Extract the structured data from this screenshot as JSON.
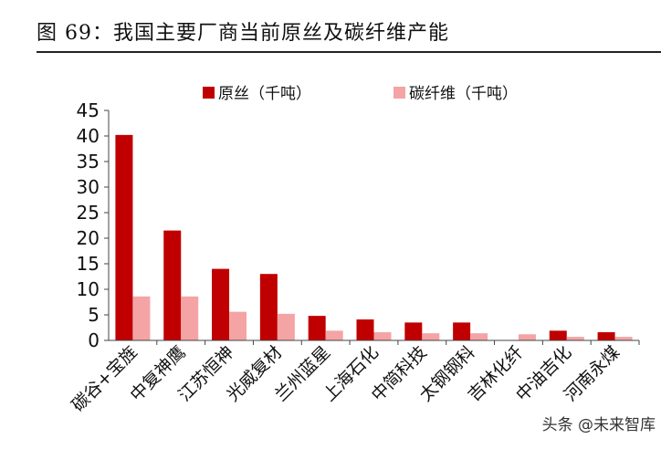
{
  "figure": {
    "title": "图 69：我国主要厂商当前原丝及碳纤维产能"
  },
  "chart_data": {
    "type": "bar",
    "categories": [
      "碳谷+宝旌",
      "中复神鹰",
      "江苏恒神",
      "光威复材",
      "兰州蓝星",
      "上海石化",
      "中简科技",
      "太钢钢科",
      "吉林化纤",
      "中油吉化",
      "河南永煤"
    ],
    "series": [
      {
        "name": "原丝（千吨）",
        "color": "#c00000",
        "values": [
          40.2,
          21.5,
          14,
          13,
          4.8,
          4.1,
          3.5,
          3.5,
          0,
          1.9,
          1.6
        ]
      },
      {
        "name": "碳纤维（千吨）",
        "color": "#f4a4a4",
        "values": [
          8.6,
          8.6,
          5.6,
          5.2,
          1.9,
          1.6,
          1.4,
          1.4,
          1.2,
          0.7,
          0.7
        ]
      }
    ],
    "ylim": [
      0,
      45
    ],
    "yticks": [
      0,
      5,
      10,
      15,
      20,
      25,
      30,
      35,
      40,
      45
    ],
    "legend": "top-center",
    "grid": false
  },
  "watermark": "头条 @未来智库"
}
